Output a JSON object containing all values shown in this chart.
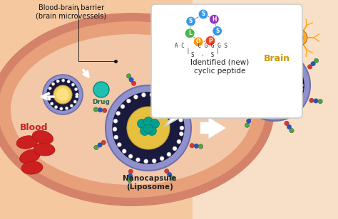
{
  "bg_color": "#f5c8a0",
  "vessel_outer_color": "#d4826a",
  "vessel_mid_color": "#e8a07a",
  "vessel_inner_color": "#f0c0a0",
  "right_bg_color": "#f5d8b8",
  "text_blood_brain": "Blood-brain barrier\n(brain microvessels)",
  "text_blood": "Blood",
  "text_nanocapsule": "Nanocapsule\n(Liposome)",
  "text_brain": "Brain",
  "text_peptide": "Identified (new)\ncyclic peptide",
  "label_drug": "Drug",
  "liposome_outer": "#9090cc",
  "liposome_beads": "#ffffff",
  "liposome_dark_ring": "#222244",
  "liposome_core": "#e8b840",
  "drug_color": "#20c0b0",
  "blood_cell_color": "#cc2020",
  "neuron_green": "#66cc55",
  "neuron_orange": "#ffaa22",
  "neuron_red": "#ee5566",
  "mol_red": "#dd3333",
  "mol_blue": "#2255cc",
  "mol_green": "#44aa44",
  "mol_white": "#eeeeee",
  "mol_teal": "#009988",
  "peptide_S_color": "#3399ee",
  "peptide_H_color": "#9933bb",
  "peptide_P_color": "#ee4422",
  "peptide_O_color": "#ff9900",
  "peptide_L_color": "#44bb44",
  "bubble_color": "#ffffff",
  "arrow_big_color": "#ffffff",
  "arrow_small_color": "#ffffff"
}
